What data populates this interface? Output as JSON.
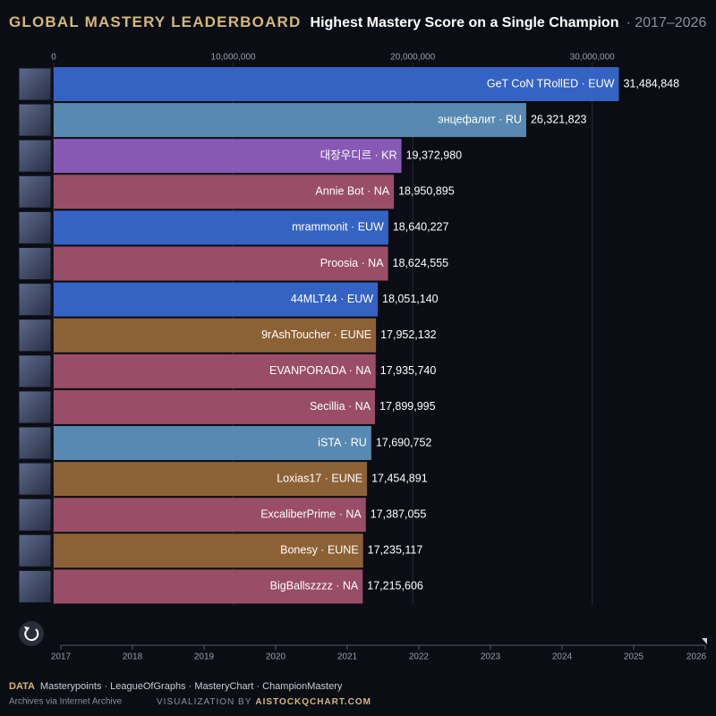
{
  "chart_data": {
    "type": "bar",
    "orientation": "horizontal",
    "title": "GLOBAL MASTERY LEADERBOARD",
    "subtitle": "Highest Mastery Score on a Single Champion",
    "date_range": "· 2017–2026",
    "categories": [
      "GeT CoN TRollED · EUW",
      "энцефалит · RU",
      "대장우디르 · KR",
      "Annie Bot · NA",
      "mrammonit · EUW",
      "Proosia · NA",
      "44MLT44 · EUW",
      "9rAshToucher · EUNE",
      "EVANPORADA · NA",
      "Secillia · NA",
      "iSTA · RU",
      "Loxias17 · EUNE",
      "ExcaliberPrime · NA",
      "Bonesy · EUNE",
      "BigBallszzzz · NA"
    ],
    "values": [
      31484848,
      26321823,
      19372980,
      18950895,
      18640227,
      18624555,
      18051140,
      17952132,
      17935740,
      17899995,
      17690752,
      17454891,
      17387055,
      17235117,
      17215606
    ],
    "value_labels": [
      "31,484,848",
      "26,321,823",
      "19,372,980",
      "18,950,895",
      "18,640,227",
      "18,624,555",
      "18,051,140",
      "17,952,132",
      "17,935,740",
      "17,899,995",
      "17,690,752",
      "17,454,891",
      "17,387,055",
      "17,235,117",
      "17,215,606"
    ],
    "colors": [
      "#3563c4",
      "#5889b3",
      "#8759b5",
      "#9a4d66",
      "#3563c4",
      "#9a4d66",
      "#3563c4",
      "#8d6136",
      "#9a4d66",
      "#9a4d66",
      "#5889b3",
      "#8d6136",
      "#9a4d66",
      "#8d6136",
      "#9a4d66"
    ],
    "xlim": [
      0,
      35000000
    ],
    "xticks": [
      0,
      {
        "value": 10000000,
        "label": "10,000,000"
      },
      {
        "value": 20000000,
        "label": "20,000,000"
      },
      {
        "value": 30000000,
        "label": "30,000,000"
      }
    ],
    "grid": true,
    "timeline": [
      "2017",
      "2018",
      "2019",
      "2020",
      "2021",
      "2022",
      "2023",
      "2024",
      "2025",
      "2026"
    ],
    "footer": {
      "data_label": "DATA",
      "sources": "Masterypoints · LeagueOfGraphs · MasteryChart · ChampionMastery",
      "archive": "Archives via Internet Archive",
      "credit_label": "VISUALIZATION BY",
      "credit": "AISTOCKQCHART.COM"
    }
  }
}
